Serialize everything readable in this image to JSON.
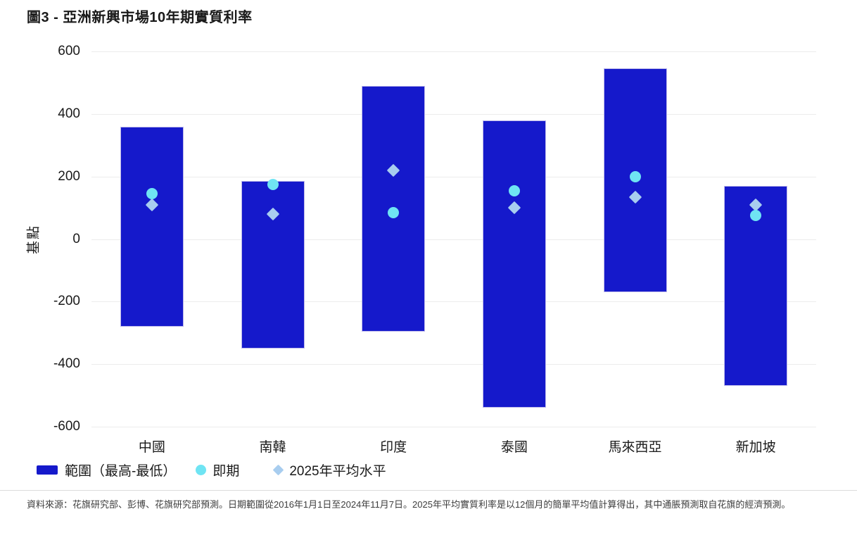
{
  "title": "圖3 - 亞洲新興市場10年期實質利率",
  "y_axis": {
    "label": "基點",
    "ticks": [
      600,
      400,
      200,
      0,
      -200,
      -400,
      -600
    ]
  },
  "legend": [
    {
      "marker": "bar-swatch",
      "label": "範圍（最高-最低）"
    },
    {
      "marker": "circle",
      "label": "即期"
    },
    {
      "marker": "diamond",
      "label": "2025年平均水平"
    }
  ],
  "footnote": "資料來源：花旗研究部、彭博、花旗研究部預測。日期範圍從2016年1月1日至2024年11月7日。2025年平均實質利率是以12個月的簡單平均值計算得出，其中通脹預測取自花旗的經濟預測。",
  "colors": {
    "bar": "#1519CB",
    "bar_border": "#BDB9EA",
    "current_dot": "#6FE4F3",
    "avg_diamond": "#A8CDEF",
    "gridline": "#ECECEC",
    "text": "#1A1A1A",
    "footnote_text": "#3D3D3D",
    "divider": "#DCDCDC"
  },
  "chart_data": {
    "type": "bar",
    "subtype": "floating-range-bars-with-point-markers",
    "title": "圖3 - 亞洲新興市場10年期實質利率",
    "categories": [
      "中國",
      "南韓",
      "印度",
      "泰國",
      "馬來西亞",
      "新加坡"
    ],
    "series": [
      {
        "name": "範圍（最高-最低）",
        "type": "range-bar",
        "high": [
          360,
          185,
          490,
          380,
          545,
          170
        ],
        "low": [
          -280,
          -350,
          -295,
          -540,
          -170,
          -470
        ]
      },
      {
        "name": "即期",
        "type": "scatter-circle",
        "values": [
          145,
          175,
          85,
          155,
          200,
          75
        ]
      },
      {
        "name": "2025年平均水平",
        "type": "scatter-diamond",
        "values": [
          110,
          80,
          220,
          100,
          135,
          110
        ]
      }
    ],
    "xlabel": "",
    "ylabel": "基點",
    "unit": "基點 (bp)",
    "ylim": [
      -600,
      600
    ],
    "ytick_step": 200,
    "grid": "horizontal",
    "legend_position": "bottom-left"
  }
}
